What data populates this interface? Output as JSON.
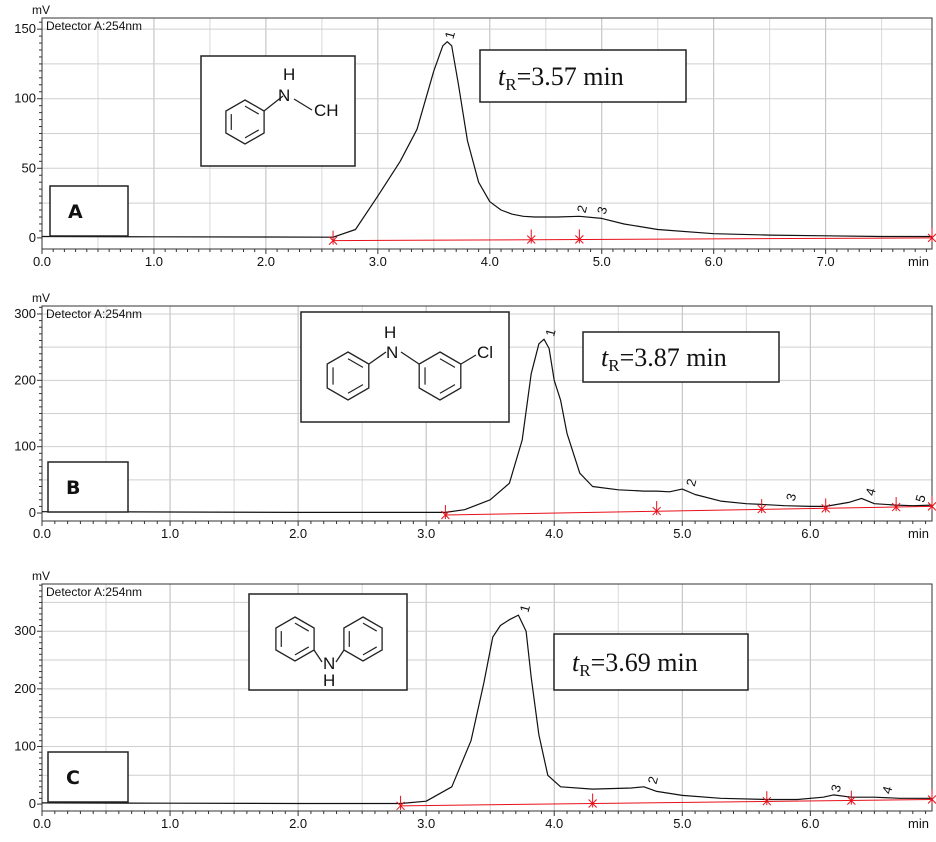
{
  "chart_data": [
    {
      "type": "line",
      "panel_label": "A",
      "detector": "Detector A:254nm",
      "ylabel": "mV",
      "xlabel": "min",
      "x_ticks": [
        "0.0",
        "1.0",
        "2.0",
        "3.0",
        "4.0",
        "5.0",
        "6.0",
        "7.0"
      ],
      "y_ticks": [
        "0",
        "50",
        "100",
        "150"
      ],
      "xlim": [
        0,
        7.95
      ],
      "ylim": [
        -8,
        158
      ],
      "retention_label": "=3.57 min",
      "molecule_labels": [
        "H",
        "N",
        "CH"
      ],
      "series": [
        {
          "x": [
            0,
            1,
            2,
            2.6,
            2.8,
            3.0,
            3.2,
            3.35,
            3.5,
            3.58,
            3.62,
            3.66,
            3.72,
            3.8,
            3.9,
            4.0,
            4.1,
            4.2,
            4.3,
            4.4,
            4.6,
            4.8,
            5.0,
            5.2,
            5.5,
            6.0,
            6.5,
            7.0,
            7.5,
            7.95
          ],
          "y": [
            1,
            0.8,
            0.6,
            0.5,
            6,
            30,
            55,
            78,
            120,
            138,
            141,
            138,
            110,
            70,
            40,
            26,
            20,
            17,
            15.5,
            15,
            15,
            15.5,
            14,
            10,
            6,
            3,
            2,
            1.5,
            1,
            1
          ]
        }
      ],
      "baseline": {
        "x": [
          2.6,
          7.95
        ],
        "y": [
          -2,
          0
        ]
      },
      "markers": [
        {
          "x": 2.6,
          "y": -2
        },
        {
          "x": 4.37,
          "y": -1.2
        },
        {
          "x": 4.8,
          "y": -1.1
        },
        {
          "x": 7.95,
          "y": 0
        }
      ],
      "peak_labels": [
        {
          "label": "1",
          "x": 3.62,
          "y": 141
        },
        {
          "label": "2",
          "x": 4.8,
          "y": 16
        },
        {
          "label": "3",
          "x": 4.98,
          "y": 15
        }
      ]
    },
    {
      "type": "line",
      "panel_label": "B",
      "detector": "Detector A:254nm",
      "ylabel": "mV",
      "xlabel": "min",
      "x_ticks": [
        "0.0",
        "1.0",
        "2.0",
        "3.0",
        "4.0",
        "5.0",
        "6.0"
      ],
      "y_ticks": [
        "0",
        "100",
        "200",
        "300"
      ],
      "xlim": [
        0,
        6.95
      ],
      "ylim": [
        -12,
        312
      ],
      "retention_label": "=3.87 min",
      "molecule_labels": [
        "H",
        "N",
        "Cl"
      ],
      "series": [
        {
          "x": [
            0,
            1,
            2,
            3,
            3.15,
            3.3,
            3.5,
            3.65,
            3.75,
            3.82,
            3.88,
            3.92,
            3.96,
            4.0,
            4.05,
            4.1,
            4.2,
            4.3,
            4.5,
            4.7,
            4.8,
            4.9,
            5.0,
            5.1,
            5.3,
            5.5,
            5.62,
            5.8,
            6.0,
            6.12,
            6.3,
            6.4,
            6.5,
            6.67,
            6.8,
            6.95
          ],
          "y": [
            2,
            1.5,
            1,
            1,
            1,
            5,
            20,
            45,
            110,
            210,
            255,
            262,
            248,
            200,
            170,
            120,
            60,
            40,
            35,
            33,
            33,
            32,
            36,
            28,
            18,
            14,
            13,
            11,
            10,
            10,
            16,
            22,
            14,
            12,
            11,
            12
          ]
        }
      ],
      "baseline": {
        "x": [
          3.15,
          6.95
        ],
        "y": [
          -3,
          10
        ]
      },
      "markers": [
        {
          "x": 3.15,
          "y": -3
        },
        {
          "x": 4.8,
          "y": 3
        },
        {
          "x": 5.62,
          "y": 6
        },
        {
          "x": 6.12,
          "y": 7
        },
        {
          "x": 6.67,
          "y": 9
        },
        {
          "x": 6.95,
          "y": 10
        }
      ],
      "peak_labels": [
        {
          "label": "1",
          "x": 3.95,
          "y": 262
        },
        {
          "label": "2",
          "x": 5.05,
          "y": 36
        },
        {
          "label": "3",
          "x": 5.83,
          "y": 14
        },
        {
          "label": "4",
          "x": 6.45,
          "y": 22
        },
        {
          "label": "5",
          "x": 6.84,
          "y": 12
        }
      ]
    },
    {
      "type": "line",
      "panel_label": "C",
      "detector": "Detector A:254nm",
      "ylabel": "mV",
      "xlabel": "min",
      "x_ticks": [
        "0.0",
        "1.0",
        "2.0",
        "3.0",
        "4.0",
        "5.0",
        "6.0"
      ],
      "y_ticks": [
        "0",
        "100",
        "200",
        "300"
      ],
      "xlim": [
        0,
        6.95
      ],
      "ylim": [
        -12,
        382
      ],
      "retention_label": "=3.69 min",
      "molecule_labels": [
        "N",
        "H"
      ],
      "series": [
        {
          "x": [
            0,
            1,
            2,
            2.8,
            3.0,
            3.2,
            3.35,
            3.45,
            3.52,
            3.58,
            3.65,
            3.72,
            3.78,
            3.82,
            3.88,
            3.95,
            4.05,
            4.3,
            4.6,
            4.7,
            4.8,
            5.0,
            5.3,
            5.66,
            5.9,
            6.1,
            6.18,
            6.32,
            6.5,
            6.7,
            6.95
          ],
          "y": [
            2,
            1.5,
            1,
            1,
            5,
            30,
            110,
            210,
            290,
            310,
            320,
            328,
            300,
            220,
            120,
            50,
            30,
            26,
            28,
            30,
            22,
            15,
            10,
            8,
            8,
            12,
            16,
            12,
            12,
            10,
            10
          ]
        }
      ],
      "baseline": {
        "x": [
          2.8,
          6.95
        ],
        "y": [
          -3,
          8
        ]
      },
      "markers": [
        {
          "x": 2.8,
          "y": -3
        },
        {
          "x": 4.3,
          "y": 1
        },
        {
          "x": 5.66,
          "y": 5
        },
        {
          "x": 6.32,
          "y": 6
        },
        {
          "x": 6.95,
          "y": 8
        }
      ],
      "peak_labels": [
        {
          "label": "1",
          "x": 3.75,
          "y": 328
        },
        {
          "label": "2",
          "x": 4.75,
          "y": 30
        },
        {
          "label": "3",
          "x": 6.18,
          "y": 16
        },
        {
          "label": "4",
          "x": 6.58,
          "y": 13
        }
      ]
    }
  ]
}
